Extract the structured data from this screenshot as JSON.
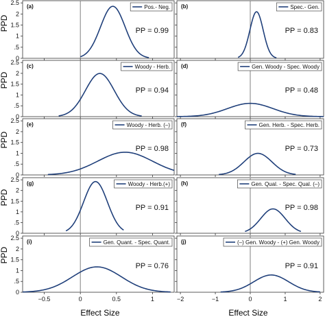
{
  "figure": {
    "ylabel": "PPD",
    "xlabel": "Effect Size",
    "line_color": "#1f3f7a",
    "zero_line_color": "#7f7f7f"
  },
  "chart_data": [
    {
      "type": "line",
      "panel": "(a)",
      "legend": "Pos.- Neg.",
      "annotation": "PP = 0.99",
      "xlim": [
        -0.8,
        1.3
      ],
      "ylim": [
        0,
        2.6
      ],
      "yticks": [
        0,
        0.5,
        1,
        1.5,
        2,
        2.5
      ],
      "xticks": [
        -0.5,
        0,
        0.5,
        1
      ],
      "density": {
        "mean": 0.45,
        "sd": 0.17
      },
      "x_range": [
        0,
        0.95
      ]
    },
    {
      "type": "line",
      "panel": "(b)",
      "legend": "Spec.- Gen.",
      "annotation": "PP = 0.83",
      "xlim": [
        -2.1,
        2.1
      ],
      "ylim": [
        0,
        2.6
      ],
      "yticks": [
        0,
        0.5,
        1,
        1.5,
        2,
        2.5
      ],
      "xticks": [
        -2,
        -1,
        0,
        1,
        2
      ],
      "density": {
        "mean": 0.18,
        "sd": 0.19
      },
      "x_range": [
        -0.35,
        0.75
      ]
    },
    {
      "type": "line",
      "panel": "(c)",
      "legend": "Woody - Herb.",
      "annotation": "PP = 0.94",
      "xlim": [
        -0.8,
        1.3
      ],
      "ylim": [
        0,
        2.6
      ],
      "yticks": [
        0,
        0.5,
        1,
        1.5,
        2,
        2.5
      ],
      "xticks": [
        -0.5,
        0,
        0.5,
        1
      ],
      "density": {
        "mean": 0.27,
        "sd": 0.2
      },
      "x_range": [
        -0.3,
        0.85
      ]
    },
    {
      "type": "line",
      "panel": "(d)",
      "legend": "Gen. Woody - Spec. Woody",
      "annotation": "PP = 0.48",
      "xlim": [
        -2.1,
        2.1
      ],
      "ylim": [
        0,
        2.6
      ],
      "yticks": [
        0,
        0.5,
        1,
        1.5,
        2,
        2.5
      ],
      "xticks": [
        -2,
        -1,
        0,
        1,
        2
      ],
      "density": {
        "mean": 0.0,
        "sd": 0.65
      },
      "x_range": [
        -2.1,
        2.1
      ]
    },
    {
      "type": "line",
      "panel": "(e)",
      "legend": "Woody - Herb. (–)",
      "annotation": "PP = 0.98",
      "xlim": [
        -0.8,
        1.3
      ],
      "ylim": [
        0,
        2.6
      ],
      "yticks": [
        0,
        0.5,
        1,
        1.5,
        2,
        2.5
      ],
      "xticks": [
        -0.5,
        0,
        0.5,
        1
      ],
      "density": {
        "mean": 0.62,
        "sd": 0.38
      },
      "x_range": [
        -0.45,
        1.3
      ]
    },
    {
      "type": "line",
      "panel": "(f)",
      "legend": "Gen. Herb. - Spec. Herb.",
      "annotation": "PP = 0.73",
      "xlim": [
        -2.1,
        2.1
      ],
      "ylim": [
        0,
        2.6
      ],
      "yticks": [
        0,
        0.5,
        1,
        1.5,
        2,
        2.5
      ],
      "xticks": [
        -2,
        -1,
        0,
        1,
        2
      ],
      "density": {
        "mean": 0.22,
        "sd": 0.4
      },
      "x_range": [
        -0.9,
        1.3
      ]
    },
    {
      "type": "line",
      "panel": "(g)",
      "legend": "Woody - Herb.(+)",
      "annotation": "PP = 0.91",
      "xlim": [
        -0.8,
        1.3
      ],
      "ylim": [
        0,
        2.6
      ],
      "yticks": [
        0,
        0.5,
        1,
        1.5,
        2,
        2.5
      ],
      "xticks": [
        -0.5,
        0,
        0.5,
        1
      ],
      "density": {
        "mean": 0.21,
        "sd": 0.165
      },
      "x_range": [
        -0.2,
        0.6
      ]
    },
    {
      "type": "line",
      "panel": "(h)",
      "legend": "Gen. Qual. - Spec. Qual. (–)",
      "annotation": "PP = 0.98",
      "xlim": [
        -2.1,
        2.1
      ],
      "ylim": [
        0,
        2.6
      ],
      "yticks": [
        0,
        0.5,
        1,
        1.5,
        2,
        2.5
      ],
      "xticks": [
        -2,
        -1,
        0,
        1,
        2
      ],
      "density": {
        "mean": 0.65,
        "sd": 0.35
      },
      "x_range": [
        -0.15,
        1.45
      ]
    },
    {
      "type": "line",
      "panel": "(i)",
      "legend": "Gen. Quant. - Spec. Quant.",
      "annotation": "PP = 0.76",
      "xlim": [
        -0.8,
        1.3
      ],
      "ylim": [
        0,
        2.6
      ],
      "yticks": [
        0,
        0.5,
        1,
        1.5,
        2,
        2.5
      ],
      "xticks": [
        -0.5,
        0,
        0.5,
        1
      ],
      "density": {
        "mean": 0.23,
        "sd": 0.34
      },
      "x_range": [
        -0.8,
        1.25
      ]
    },
    {
      "type": "line",
      "panel": "(j)",
      "legend": "(–) Gen. Woody - (+) Gen. Woody",
      "annotation": "PP = 0.91",
      "xlim": [
        -2.1,
        2.1
      ],
      "ylim": [
        0,
        2.6
      ],
      "yticks": [
        0,
        0.5,
        1,
        1.5,
        2,
        2.5
      ],
      "xticks": [
        -2,
        -1,
        0,
        1,
        2
      ],
      "density": {
        "mean": 0.6,
        "sd": 0.5
      },
      "x_range": [
        -0.85,
        2.0
      ]
    }
  ]
}
